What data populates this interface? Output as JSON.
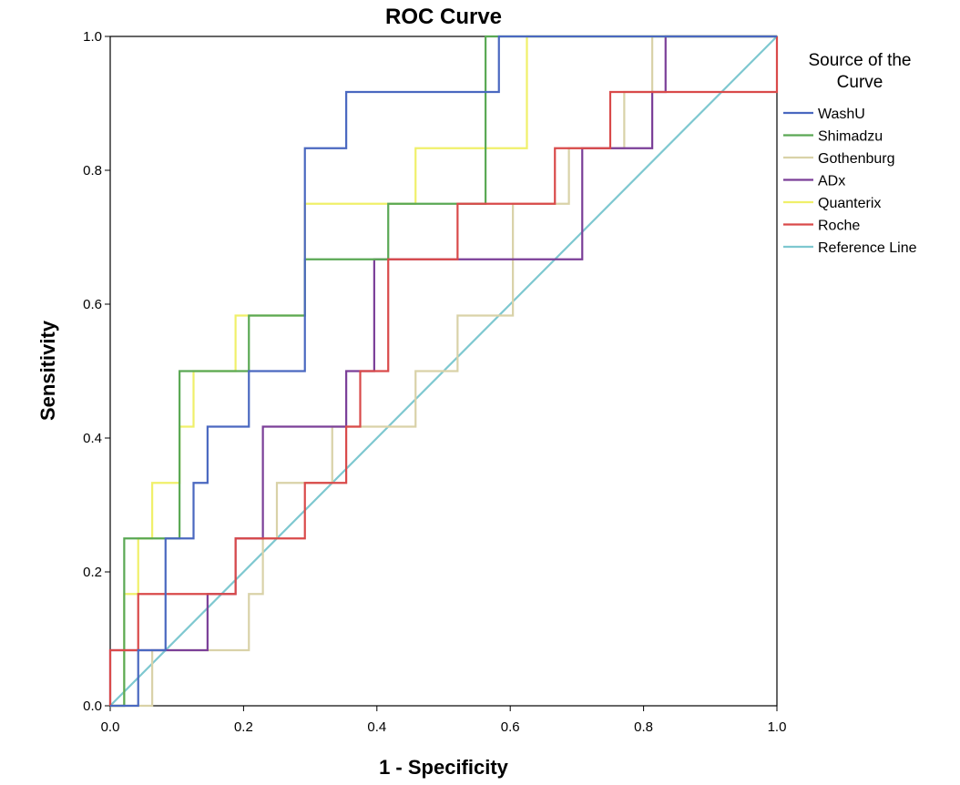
{
  "chart_data": {
    "type": "line",
    "title": "ROC Curve",
    "xlabel": "1 - Specificity",
    "ylabel": "Sensitivity",
    "xlim": [
      0,
      1
    ],
    "ylim": [
      0,
      1
    ],
    "xticks": [
      "0.0",
      "0.2",
      "0.4",
      "0.6",
      "0.8",
      "1.0"
    ],
    "yticks": [
      "0.0",
      "0.2",
      "0.4",
      "0.6",
      "0.8",
      "1.0"
    ],
    "grid": false,
    "legend": {
      "title_lines": [
        "Source of the",
        "Curve"
      ],
      "placement": "right"
    },
    "series": [
      {
        "name": "WashU",
        "color": "#4a68c0",
        "points": [
          [
            0,
            0
          ],
          [
            0.042,
            0
          ],
          [
            0.042,
            0.083
          ],
          [
            0.083,
            0.083
          ],
          [
            0.083,
            0.25
          ],
          [
            0.125,
            0.25
          ],
          [
            0.125,
            0.333
          ],
          [
            0.146,
            0.333
          ],
          [
            0.146,
            0.417
          ],
          [
            0.208,
            0.417
          ],
          [
            0.208,
            0.5
          ],
          [
            0.292,
            0.5
          ],
          [
            0.292,
            0.833
          ],
          [
            0.354,
            0.833
          ],
          [
            0.354,
            0.917
          ],
          [
            0.583,
            0.917
          ],
          [
            0.583,
            1
          ],
          [
            1,
            1
          ]
        ]
      },
      {
        "name": "Shimadzu",
        "color": "#5aa854",
        "points": [
          [
            0,
            0
          ],
          [
            0.021,
            0
          ],
          [
            0.021,
            0.167
          ],
          [
            0.021,
            0.25
          ],
          [
            0.104,
            0.25
          ],
          [
            0.104,
            0.5
          ],
          [
            0.208,
            0.5
          ],
          [
            0.208,
            0.583
          ],
          [
            0.292,
            0.583
          ],
          [
            0.292,
            0.667
          ],
          [
            0.417,
            0.667
          ],
          [
            0.417,
            0.75
          ],
          [
            0.563,
            0.75
          ],
          [
            0.563,
            1
          ],
          [
            1,
            1
          ]
        ]
      },
      {
        "name": "Gothenburg",
        "color": "#d9d2a8",
        "points": [
          [
            0,
            0
          ],
          [
            0.063,
            0
          ],
          [
            0.063,
            0.083
          ],
          [
            0.208,
            0.083
          ],
          [
            0.208,
            0.167
          ],
          [
            0.229,
            0.167
          ],
          [
            0.229,
            0.25
          ],
          [
            0.25,
            0.25
          ],
          [
            0.25,
            0.333
          ],
          [
            0.333,
            0.333
          ],
          [
            0.333,
            0.417
          ],
          [
            0.458,
            0.417
          ],
          [
            0.458,
            0.5
          ],
          [
            0.521,
            0.5
          ],
          [
            0.521,
            0.583
          ],
          [
            0.604,
            0.583
          ],
          [
            0.604,
            0.75
          ],
          [
            0.688,
            0.75
          ],
          [
            0.688,
            0.833
          ],
          [
            0.771,
            0.833
          ],
          [
            0.771,
            0.917
          ],
          [
            0.813,
            0.917
          ],
          [
            0.813,
            1
          ],
          [
            1,
            1
          ]
        ]
      },
      {
        "name": "ADx",
        "color": "#7b3f98",
        "points": [
          [
            0,
            0
          ],
          [
            0,
            0.083
          ],
          [
            0.146,
            0.083
          ],
          [
            0.146,
            0.167
          ],
          [
            0.188,
            0.167
          ],
          [
            0.188,
            0.25
          ],
          [
            0.229,
            0.25
          ],
          [
            0.229,
            0.417
          ],
          [
            0.354,
            0.417
          ],
          [
            0.354,
            0.5
          ],
          [
            0.396,
            0.5
          ],
          [
            0.396,
            0.667
          ],
          [
            0.708,
            0.667
          ],
          [
            0.708,
            0.833
          ],
          [
            0.813,
            0.833
          ],
          [
            0.813,
            0.917
          ],
          [
            0.833,
            0.917
          ],
          [
            0.833,
            1
          ],
          [
            1,
            1
          ]
        ]
      },
      {
        "name": "Quanterix",
        "color": "#f0f06a",
        "points": [
          [
            0,
            0
          ],
          [
            0.021,
            0
          ],
          [
            0.021,
            0.167
          ],
          [
            0.042,
            0.167
          ],
          [
            0.042,
            0.25
          ],
          [
            0.063,
            0.25
          ],
          [
            0.063,
            0.333
          ],
          [
            0.104,
            0.333
          ],
          [
            0.104,
            0.417
          ],
          [
            0.125,
            0.417
          ],
          [
            0.125,
            0.5
          ],
          [
            0.188,
            0.5
          ],
          [
            0.188,
            0.583
          ],
          [
            0.292,
            0.583
          ],
          [
            0.292,
            0.75
          ],
          [
            0.458,
            0.75
          ],
          [
            0.458,
            0.833
          ],
          [
            0.625,
            0.833
          ],
          [
            0.625,
            1
          ],
          [
            1,
            1
          ]
        ]
      },
      {
        "name": "Roche",
        "color": "#d94a4a",
        "points": [
          [
            0,
            0
          ],
          [
            0,
            0.083
          ],
          [
            0.042,
            0.083
          ],
          [
            0.042,
            0.167
          ],
          [
            0.188,
            0.167
          ],
          [
            0.188,
            0.25
          ],
          [
            0.292,
            0.25
          ],
          [
            0.292,
            0.333
          ],
          [
            0.354,
            0.333
          ],
          [
            0.354,
            0.417
          ],
          [
            0.375,
            0.417
          ],
          [
            0.375,
            0.5
          ],
          [
            0.417,
            0.5
          ],
          [
            0.417,
            0.667
          ],
          [
            0.521,
            0.667
          ],
          [
            0.521,
            0.75
          ],
          [
            0.667,
            0.75
          ],
          [
            0.667,
            0.833
          ],
          [
            0.75,
            0.833
          ],
          [
            0.75,
            0.917
          ],
          [
            1,
            0.917
          ],
          [
            1,
            1
          ]
        ]
      },
      {
        "name": "Reference Line",
        "color": "#7ec8d0",
        "points": [
          [
            0,
            0
          ],
          [
            1,
            1
          ]
        ]
      }
    ]
  }
}
